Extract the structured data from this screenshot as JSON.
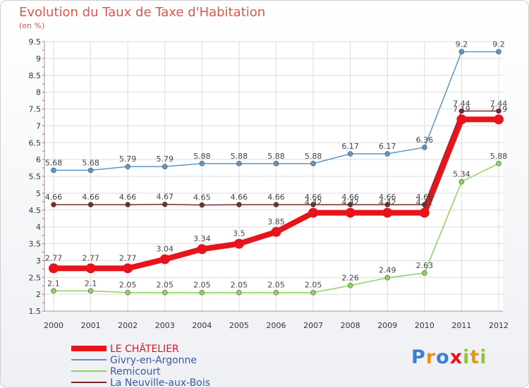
{
  "chart_data": {
    "type": "line",
    "title": "Evolution du Taux de Taxe d'Habitation",
    "subtitle": "(en %)",
    "x": [
      "2000",
      "2001",
      "2002",
      "2003",
      "2004",
      "2005",
      "2006",
      "2007",
      "2008",
      "2009",
      "2010",
      "2011",
      "2012"
    ],
    "ylim": [
      1.5,
      9.5
    ],
    "yticks": [
      "1.5",
      "2",
      "2.5",
      "3",
      "3.5",
      "4",
      "4.5",
      "5",
      "5.5",
      "6",
      "6.5",
      "7",
      "7.5",
      "8",
      "8.5",
      "9",
      "9.5"
    ],
    "grid": true,
    "legend": "bottom-left",
    "series": [
      {
        "name": "LE CHÂTELIER",
        "color": "#e8141b",
        "width": 8,
        "marker": 7,
        "values": [
          2.77,
          2.77,
          2.77,
          3.04,
          3.34,
          3.5,
          3.85,
          4.42,
          4.42,
          4.42,
          4.42,
          7.19,
          7.19
        ],
        "labels": [
          "2.77",
          "2.77",
          "2.77",
          "3.04",
          "3.34",
          "3.5",
          "3.85",
          "4.42",
          "4.42",
          "4.42",
          "4.42",
          "7.19",
          "7.19"
        ]
      },
      {
        "name": "Givry-en-Argonne",
        "color": "#5b96c9",
        "width": 1.5,
        "marker": 3.5,
        "values": [
          5.68,
          5.68,
          5.79,
          5.79,
          5.88,
          5.88,
          5.88,
          5.88,
          6.17,
          6.17,
          6.36,
          9.2,
          9.2
        ],
        "labels": [
          "5.68",
          "5.68",
          "5.79",
          "5.79",
          "5.88",
          "5.88",
          "5.88",
          "5.88",
          "6.17",
          "6.17",
          "6.36",
          "9.2",
          "9.2"
        ]
      },
      {
        "name": "Remicourt",
        "color": "#8fd15e",
        "width": 1.5,
        "marker": 3.5,
        "values": [
          2.1,
          2.1,
          2.05,
          2.05,
          2.05,
          2.05,
          2.05,
          2.05,
          2.26,
          2.49,
          2.63,
          5.34,
          5.88
        ],
        "labels": [
          "2.1",
          "2.1",
          "2.05",
          "2.05",
          "2.05",
          "2.05",
          "2.05",
          "2.05",
          "2.26",
          "2.49",
          "2.63",
          "5.34",
          "5.88"
        ]
      },
      {
        "name": "La Neuville-aux-Bois",
        "color": "#7a2a2a",
        "width": 1.5,
        "marker": 3.5,
        "values": [
          4.66,
          4.66,
          4.66,
          4.67,
          4.65,
          4.66,
          4.66,
          4.66,
          4.66,
          4.66,
          4.66,
          7.44,
          7.44
        ],
        "labels": [
          "4.66",
          "4.66",
          "4.66",
          "4.67",
          "4.65",
          "4.66",
          "4.66",
          "4.66",
          "4.66",
          "4.66",
          "4.66",
          "7.44",
          "7.44"
        ]
      }
    ]
  },
  "logo": {
    "letters": [
      "P",
      "r",
      "o",
      "x",
      "i",
      "t",
      "i"
    ],
    "colors": [
      "#3a7fd0",
      "#e8951c",
      "#3a7fd0",
      "#e8141b",
      "#8fc641",
      "#e8951c",
      "#8fc641"
    ]
  }
}
